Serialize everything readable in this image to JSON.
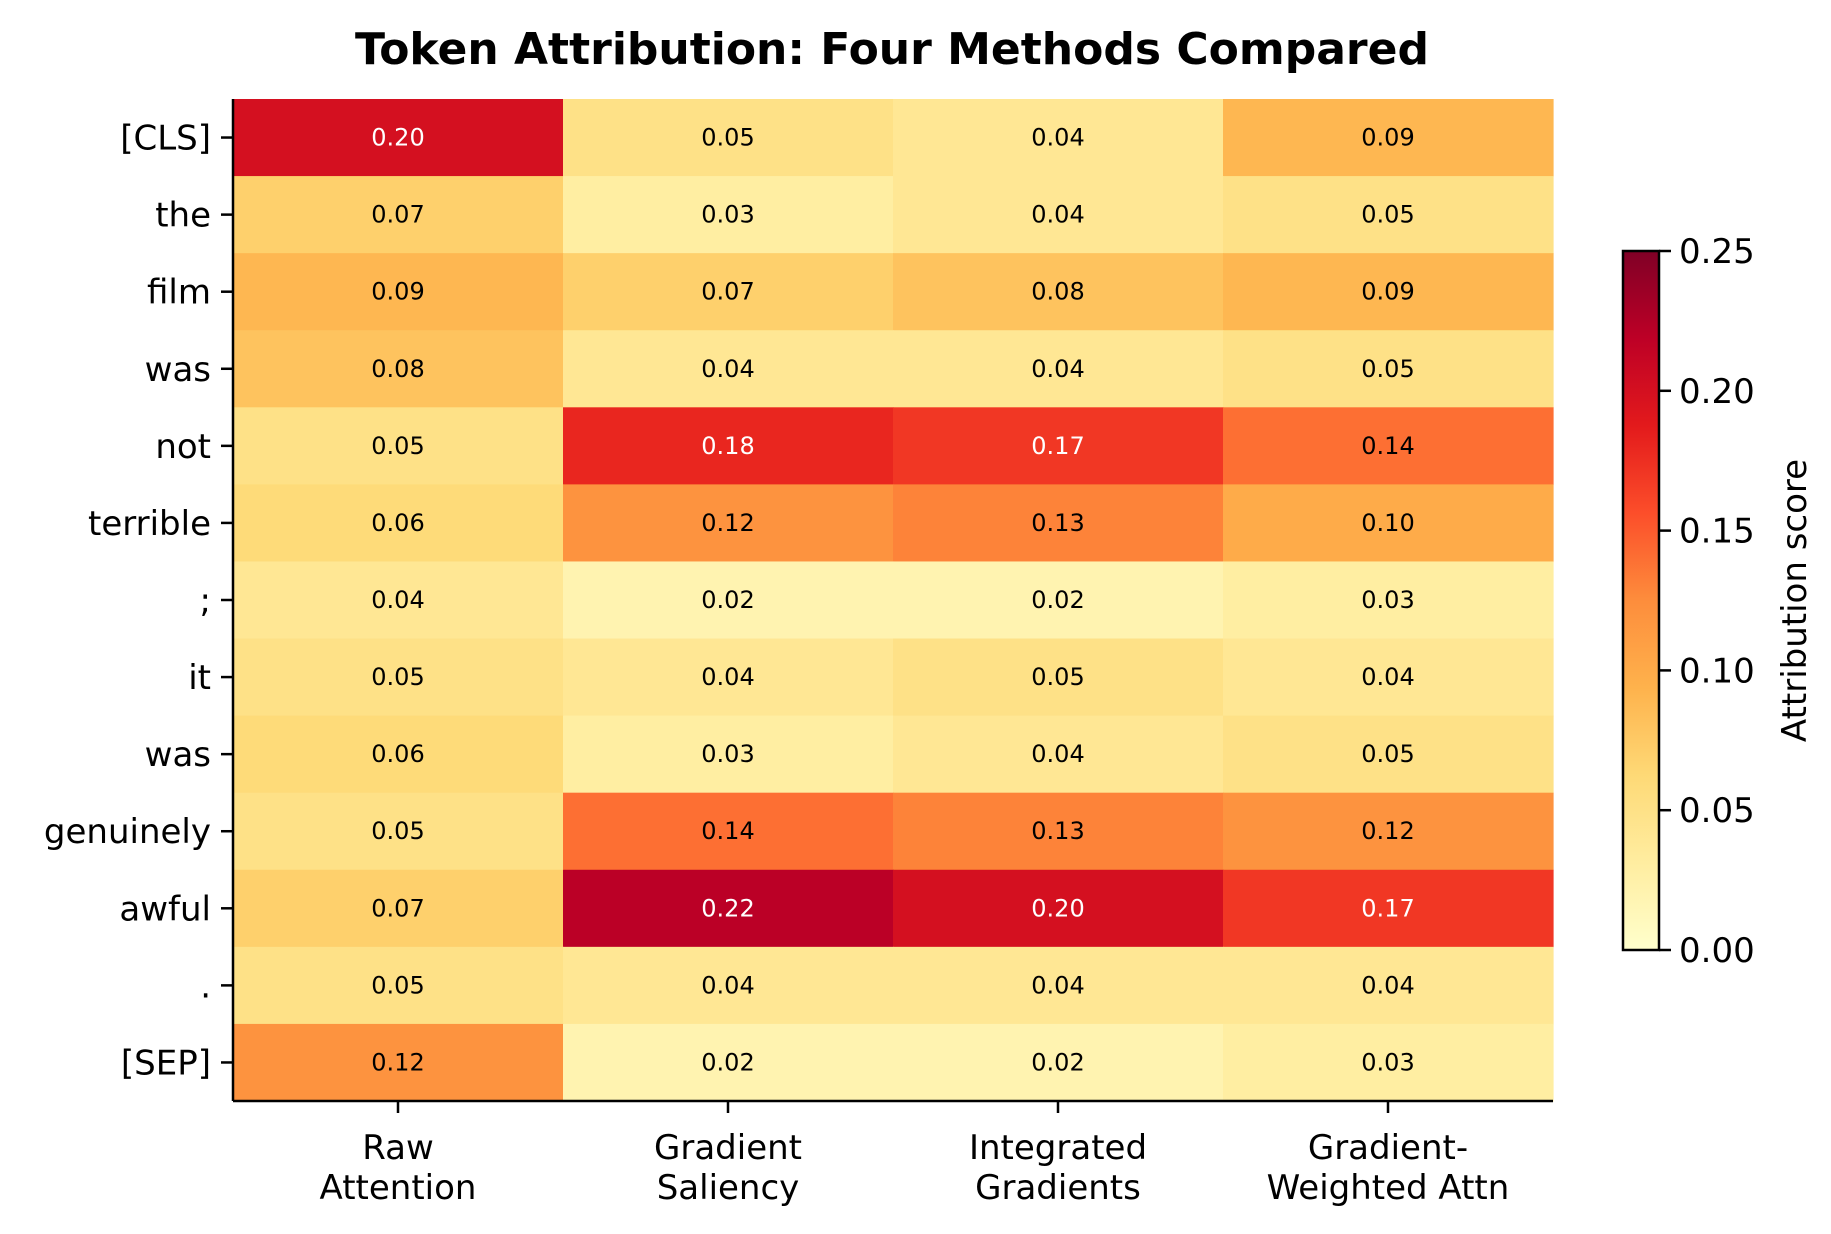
{
  "chart_data": {
    "type": "heatmap",
    "title": "Token Attribution: Four Methods Compared",
    "columns": [
      [
        "Raw",
        "Attention"
      ],
      [
        "Gradient",
        "Saliency"
      ],
      [
        "Integrated",
        "Gradients"
      ],
      [
        "Gradient-",
        "Weighted Attn"
      ]
    ],
    "rows": [
      "[CLS]",
      "the",
      "film",
      "was",
      "not",
      "terrible",
      ";",
      "it",
      "was",
      "genuinely",
      "awful",
      ".",
      "[SEP]"
    ],
    "values": [
      [
        0.2,
        0.05,
        0.04,
        0.09
      ],
      [
        0.07,
        0.03,
        0.04,
        0.05
      ],
      [
        0.09,
        0.07,
        0.08,
        0.09
      ],
      [
        0.08,
        0.04,
        0.04,
        0.05
      ],
      [
        0.05,
        0.18,
        0.17,
        0.14
      ],
      [
        0.06,
        0.12,
        0.13,
        0.1
      ],
      [
        0.04,
        0.02,
        0.02,
        0.03
      ],
      [
        0.05,
        0.04,
        0.05,
        0.04
      ],
      [
        0.06,
        0.03,
        0.04,
        0.05
      ],
      [
        0.05,
        0.14,
        0.13,
        0.12
      ],
      [
        0.07,
        0.22,
        0.2,
        0.17
      ],
      [
        0.05,
        0.04,
        0.04,
        0.04
      ],
      [
        0.12,
        0.02,
        0.02,
        0.03
      ]
    ],
    "cell_labels": [
      [
        "0.20",
        "0.05",
        "0.04",
        "0.09"
      ],
      [
        "0.07",
        "0.03",
        "0.04",
        "0.05"
      ],
      [
        "0.09",
        "0.07",
        "0.08",
        "0.09"
      ],
      [
        "0.08",
        "0.04",
        "0.04",
        "0.05"
      ],
      [
        "0.05",
        "0.18",
        "0.17",
        "0.14"
      ],
      [
        "0.06",
        "0.12",
        "0.13",
        "0.10"
      ],
      [
        "0.04",
        "0.02",
        "0.02",
        "0.03"
      ],
      [
        "0.05",
        "0.04",
        "0.05",
        "0.04"
      ],
      [
        "0.06",
        "0.03",
        "0.04",
        "0.05"
      ],
      [
        "0.05",
        "0.14",
        "0.13",
        "0.12"
      ],
      [
        "0.07",
        "0.22",
        "0.20",
        "0.17"
      ],
      [
        "0.05",
        "0.04",
        "0.04",
        "0.04"
      ],
      [
        "0.12",
        "0.02",
        "0.02",
        "0.03"
      ]
    ],
    "colormap": "YlOrRd",
    "color_range": [
      0.0,
      0.25
    ],
    "colorbar": {
      "label": "Attribution score",
      "ticks": [
        "0.00",
        "0.05",
        "0.10",
        "0.15",
        "0.20",
        "0.25"
      ],
      "tick_values": [
        0.0,
        0.05,
        0.1,
        0.15,
        0.2,
        0.25
      ]
    },
    "grid": false,
    "legend": "colorbar-right"
  },
  "colors": {
    "ylorrd_stops": [
      "#ffffcc",
      "#ffeda0",
      "#fed976",
      "#feb24c",
      "#fd8d3c",
      "#fc4e2a",
      "#e31a1c",
      "#bd0026",
      "#800026"
    ]
  }
}
